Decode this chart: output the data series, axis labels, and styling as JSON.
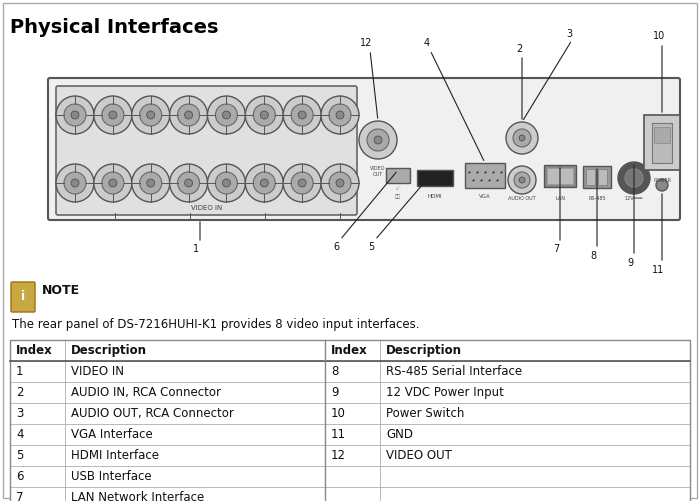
{
  "title": "Physical Interfaces",
  "note_text": "The rear panel of DS-7216HUHI-K1 provides 8 video input interfaces.",
  "table_headers": [
    "Index",
    "Description",
    "Index",
    "Description"
  ],
  "table_rows": [
    [
      "1",
      "VIDEO IN",
      "8",
      "RS-485 Serial Interface"
    ],
    [
      "2",
      "AUDIO IN, RCA Connector",
      "9",
      "12 VDC Power Input"
    ],
    [
      "3",
      "AUDIO OUT, RCA Connector",
      "10",
      "Power Switch"
    ],
    [
      "4",
      "VGA Interface",
      "11",
      "GND"
    ],
    [
      "5",
      "HDMI Interface",
      "12",
      "VIDEO OUT"
    ],
    [
      "6",
      "USB Interface",
      "",
      ""
    ],
    [
      "7",
      "LAN Network Interface",
      "",
      ""
    ]
  ],
  "bg_color": "#ffffff",
  "title_color": "#000000",
  "device_bg": "#f0f0f0",
  "device_border": "#555555",
  "bnc_bg": "#e0e0e0",
  "bnc_outer": "#cccccc",
  "bnc_inner": "#aaaaaa",
  "bnc_dot": "#888888",
  "note_icon_color": "#c8a840",
  "callout_color": "#222222",
  "table_border": "#888888",
  "table_header_bold": true
}
